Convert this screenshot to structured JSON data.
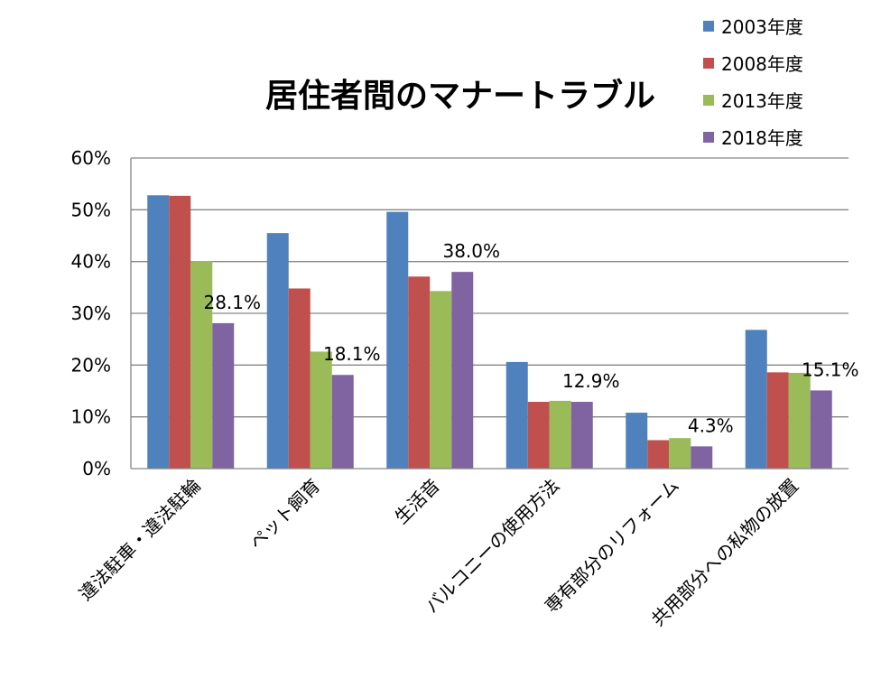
{
  "chart_data": {
    "type": "bar",
    "title": "居住者間のマナートラブル",
    "xlabel": "",
    "ylabel": "",
    "ylim": [
      0,
      60
    ],
    "yticks": [
      0,
      10,
      20,
      30,
      40,
      50,
      60
    ],
    "ytick_labels": [
      "0%",
      "10%",
      "20%",
      "30%",
      "40%",
      "50%",
      "60%"
    ],
    "grid": true,
    "legend_position": "top-right",
    "categories": [
      "違法駐車・違法駐輪",
      "ペット飼育",
      "生活音",
      "バルコニーの使用方法",
      "専有部分のリフォーム",
      "共用部分への私物の放置"
    ],
    "series": [
      {
        "name": "2003年度",
        "color": "#4F81BD",
        "values": [
          52.8,
          45.5,
          49.6,
          20.6,
          10.8,
          26.8
        ]
      },
      {
        "name": "2008年度",
        "color": "#C0504D",
        "values": [
          52.7,
          34.8,
          37.1,
          12.9,
          5.5,
          18.6
        ]
      },
      {
        "name": "2013年度",
        "color": "#9BBB59",
        "values": [
          40.1,
          22.6,
          34.3,
          13.1,
          5.9,
          18.5
        ]
      },
      {
        "name": "2018年度",
        "color": "#8064A2",
        "values": [
          28.1,
          18.1,
          38.0,
          12.9,
          4.3,
          15.1
        ]
      }
    ],
    "data_labels": [
      "28.1%",
      "18.1%",
      "38.0%",
      "12.9%",
      "4.3%",
      "15.1%"
    ]
  }
}
